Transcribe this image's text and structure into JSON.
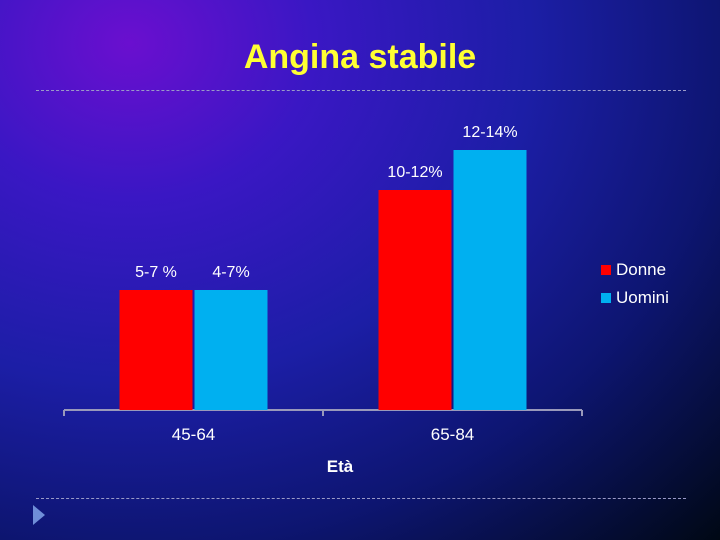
{
  "slide": {
    "title": "Angina stabile"
  },
  "chart_data": {
    "type": "bar",
    "title": "",
    "xlabel": "Età",
    "ylabel": "",
    "categories": [
      "45-64",
      "65-84"
    ],
    "series": [
      {
        "name": "Donne",
        "color": "#ff0000",
        "values": [
          6,
          11
        ],
        "labels": [
          "5-7 %",
          "10-12%"
        ]
      },
      {
        "name": "Uomini",
        "color": "#00b0f0",
        "values": [
          6,
          13
        ],
        "labels": [
          "4-7%",
          "12-14%"
        ]
      }
    ],
    "ylim": [
      0,
      14
    ],
    "grid": false,
    "legend_position": "right"
  },
  "navigation": {
    "next_icon": "play-triangle-icon"
  }
}
